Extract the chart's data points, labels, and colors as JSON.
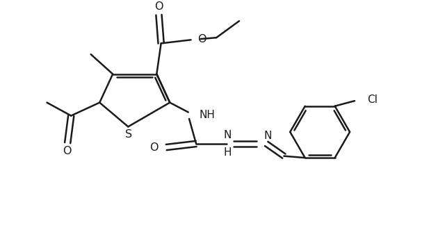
{
  "background_color": "#ffffff",
  "line_color": "#1a1a1a",
  "line_width": 1.8,
  "font_size": 10.5,
  "figsize": [
    6.4,
    3.44
  ],
  "dpi": 100,
  "xlim": [
    0,
    10
  ],
  "ylim": [
    0,
    5.375
  ]
}
